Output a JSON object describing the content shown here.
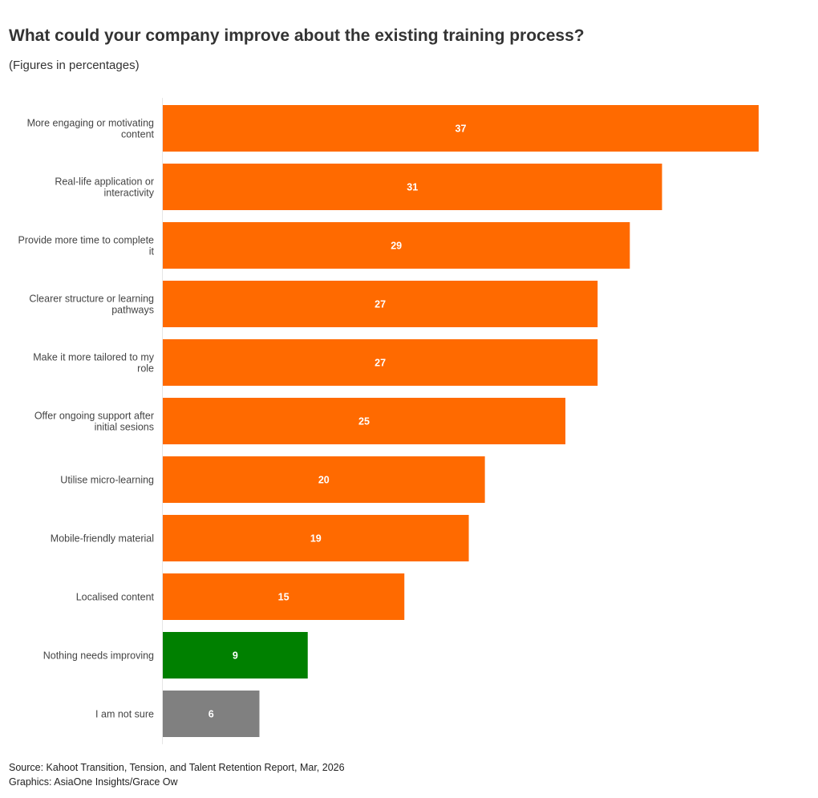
{
  "header": {
    "title": "What could your company improve about the existing training process?",
    "subtitle": "(Figures in percentages)"
  },
  "footer": {
    "source": "Source: Kahoot Transition, Tension, and Talent Retention Report, Mar, 2026",
    "credit": "Graphics: AsiaOne Insights/Grace Ow"
  },
  "colors": {
    "default_bar": "#ff6a00",
    "highlight_green": "#008000",
    "neutral_grey": "#808080",
    "label_text": "#444444",
    "value_text": "#ffffff",
    "axis_line": "#e6e6e6"
  },
  "chart_data": {
    "type": "bar",
    "orientation": "horizontal",
    "title": "What could your company improve about the existing training process?",
    "subtitle": "(Figures in percentages)",
    "xlabel": "",
    "ylabel": "",
    "xlim": [
      0,
      37
    ],
    "grid": false,
    "legend": "none",
    "categories": [
      [
        "More engaging or motivating",
        "content"
      ],
      [
        "Real-life application or",
        "interactivity"
      ],
      [
        "Provide more time to complete",
        "it"
      ],
      [
        "Clearer structure or learning",
        "pathways"
      ],
      [
        "Make it more tailored to my",
        "role"
      ],
      [
        "Offer ongoing support after",
        "initial sesions"
      ],
      [
        "Utilise micro-learning"
      ],
      [
        "Mobile-friendly material"
      ],
      [
        "Localised content"
      ],
      [
        "Nothing needs improving"
      ],
      [
        "I am not sure"
      ]
    ],
    "values": [
      37,
      31,
      29,
      27,
      27,
      25,
      20,
      19,
      15,
      9,
      6
    ],
    "bar_colors": [
      "#ff6a00",
      "#ff6a00",
      "#ff6a00",
      "#ff6a00",
      "#ff6a00",
      "#ff6a00",
      "#ff6a00",
      "#ff6a00",
      "#ff6a00",
      "#008000",
      "#808080"
    ]
  }
}
